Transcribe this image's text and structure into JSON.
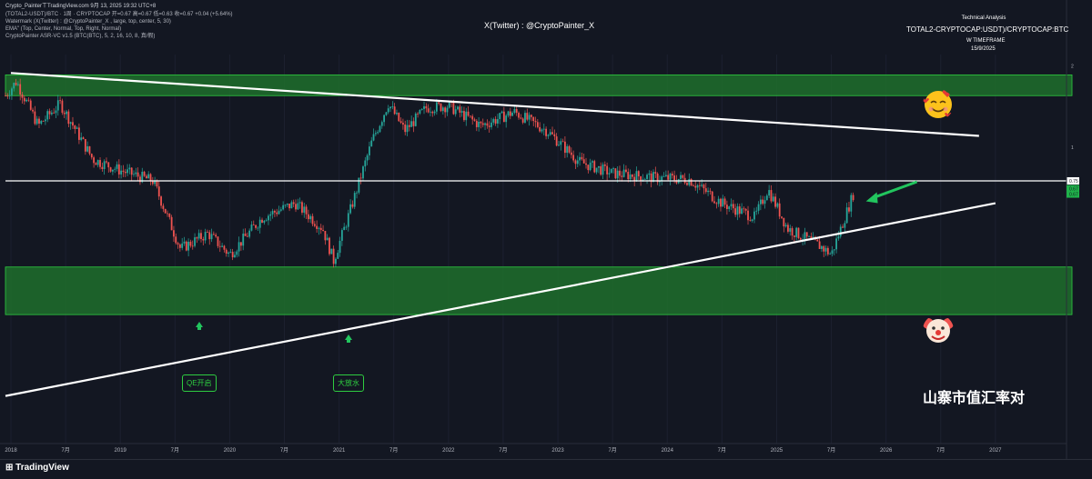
{
  "header": {
    "top_line": "Crypto_PainterㄒTradingView.com 9月 13, 2025 19:32 UTC+8",
    "legend_line1": "(TOTAL2-USDT)/BTC · 1周 · CRYPTOCAP 开=0.67 高=0.67 低=0.63 收=0.67 +0.04 (+5.64%)",
    "legend_line2": "Watermark (X(Twitter) : @CryptoPainter_X , large, top, center, 5, 30)",
    "legend_line3": "EMA\" (Top, Center, Normal, Top, Right, Normal)",
    "legend_line4": "CryptoPainter ASR-VC v1.5 (BTC(BTC), 5, 2, 16, 10, 8, 真/假)"
  },
  "watermark": "X(Twitter) : @CryptoPainter_X",
  "info_box": {
    "technical": "Technical Analysis",
    "symbol": "TOTAL2-CRYPTOCAP:USDT)/CRYPTOCAP:BTC",
    "timeframe": "W TIMEFRAME",
    "date": "15/9/2025"
  },
  "annotations": {
    "qe": "QE开启",
    "flood": "大放水",
    "title": "山寨市值汇率对"
  },
  "footer": {
    "brand": "TradingView"
  },
  "colors": {
    "background": "#131722",
    "up": "#26a69a",
    "down": "#ef5350",
    "zone": "#1e7a2e",
    "annot": "#2ecc40"
  },
  "icons": {
    "top_zone": "smiling-face-with-hearts-icon",
    "bottom_zone": "clown-face-icon",
    "arrow": "green-arrow-icon"
  },
  "chart_data": {
    "type": "candlestick",
    "price_labels": {
      "level": "0.75",
      "last_a": "0.67",
      "last_b": "0.67"
    },
    "yticks": [
      {
        "label": "2",
        "value": 2.0
      },
      {
        "label": "1",
        "value": 1.0
      }
    ],
    "xticks": [
      {
        "label": "2018",
        "year": 2018.0
      },
      {
        "label": "7月",
        "year": 2018.5
      },
      {
        "label": "2019",
        "year": 2019.0
      },
      {
        "label": "7月",
        "year": 2019.5
      },
      {
        "label": "2020",
        "year": 2020.0
      },
      {
        "label": "7月",
        "year": 2020.5
      },
      {
        "label": "2021",
        "year": 2021.0
      },
      {
        "label": "7月",
        "year": 2021.5
      },
      {
        "label": "2022",
        "year": 2022.0
      },
      {
        "label": "7月",
        "year": 2022.5
      },
      {
        "label": "2023",
        "year": 2023.0
      },
      {
        "label": "7月",
        "year": 2023.5
      },
      {
        "label": "2024",
        "year": 2024.0
      },
      {
        "label": "7月",
        "year": 2024.5
      },
      {
        "label": "2025",
        "year": 2025.0
      },
      {
        "label": "7月",
        "year": 2025.5
      },
      {
        "label": "2026",
        "year": 2026.0
      },
      {
        "label": "7月",
        "year": 2026.5
      },
      {
        "label": "2027",
        "year": 2027.0
      }
    ],
    "key_points": [
      {
        "year": 2017.95,
        "close": 1.55
      },
      {
        "year": 2018.05,
        "close": 1.75
      },
      {
        "year": 2018.25,
        "close": 1.2
      },
      {
        "year": 2018.45,
        "close": 1.45
      },
      {
        "year": 2018.75,
        "close": 0.9
      },
      {
        "year": 2019.0,
        "close": 0.82
      },
      {
        "year": 2019.3,
        "close": 0.75
      },
      {
        "year": 2019.55,
        "close": 0.42
      },
      {
        "year": 2019.8,
        "close": 0.48
      },
      {
        "year": 2020.0,
        "close": 0.4
      },
      {
        "year": 2020.3,
        "close": 0.55
      },
      {
        "year": 2020.6,
        "close": 0.62
      },
      {
        "year": 2020.85,
        "close": 0.5
      },
      {
        "year": 2020.95,
        "close": 0.38
      },
      {
        "year": 2021.1,
        "close": 0.58
      },
      {
        "year": 2021.3,
        "close": 1.05
      },
      {
        "year": 2021.45,
        "close": 1.45
      },
      {
        "year": 2021.6,
        "close": 1.15
      },
      {
        "year": 2021.8,
        "close": 1.4
      },
      {
        "year": 2022.0,
        "close": 1.42
      },
      {
        "year": 2022.3,
        "close": 1.2
      },
      {
        "year": 2022.6,
        "close": 1.35
      },
      {
        "year": 2022.9,
        "close": 1.15
      },
      {
        "year": 2023.2,
        "close": 0.88
      },
      {
        "year": 2023.5,
        "close": 0.8
      },
      {
        "year": 2023.9,
        "close": 0.77
      },
      {
        "year": 2024.2,
        "close": 0.76
      },
      {
        "year": 2024.5,
        "close": 0.62
      },
      {
        "year": 2024.8,
        "close": 0.55
      },
      {
        "year": 2024.92,
        "close": 0.7
      },
      {
        "year": 2025.1,
        "close": 0.5
      },
      {
        "year": 2025.4,
        "close": 0.43
      },
      {
        "year": 2025.5,
        "close": 0.4
      },
      {
        "year": 2025.7,
        "close": 0.67
      }
    ],
    "levels": {
      "horizontal": 0.75
    },
    "zones": [
      {
        "name": "top-zone",
        "low": 1.55,
        "high": 1.85,
        "x_start": 2017.95,
        "x_end": 2027.7
      },
      {
        "name": "bottom-zone",
        "low": 0.24,
        "high": 0.36,
        "x_start": 2017.95,
        "x_end": 2027.7
      }
    ],
    "trendlines": [
      {
        "name": "upper-trendline",
        "from": [
          2018.0,
          1.88
        ],
        "to": [
          2026.85,
          1.1
        ]
      },
      {
        "name": "lower-trendline",
        "from": [
          2017.95,
          0.12
        ],
        "to": [
          2027.0,
          0.62
        ]
      }
    ]
  }
}
